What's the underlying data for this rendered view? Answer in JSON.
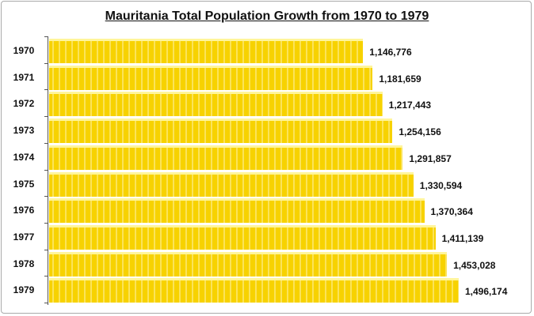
{
  "chart_data": {
    "type": "bar",
    "orientation": "horizontal",
    "title": "Mauritania Total Population Growth from 1970 to 1979",
    "categories": [
      "1970",
      "1971",
      "1972",
      "1973",
      "1974",
      "1975",
      "1976",
      "1977",
      "1978",
      "1979"
    ],
    "values": [
      1146776,
      1181659,
      1217443,
      1254156,
      1291857,
      1330594,
      1370364,
      1411139,
      1453028,
      1496174
    ],
    "value_labels": [
      "1,146,776",
      "1,181,659",
      "1,217,443",
      "1,254,156",
      "1,291,857",
      "1,330,594",
      "1,370,364",
      "1,411,139",
      "1,453,028",
      "1,496,174"
    ],
    "xlabel": "",
    "ylabel": "",
    "xlim": [
      0,
      1496174
    ],
    "grid": false,
    "bar_color": "#f7d200"
  }
}
